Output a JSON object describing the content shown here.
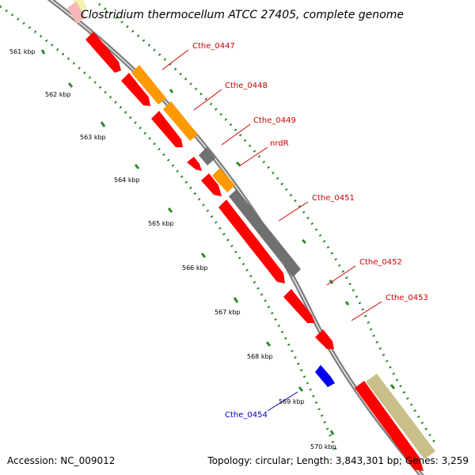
{
  "title": "Clostridium thermocellum ATCC 27405, complete genome",
  "footer": {
    "accession": "Accession: NC_009012",
    "summary": "Topology: circular; Length: 3,843,301 bp; Genes: 3,259"
  },
  "scale_labels": [
    "561 kbp",
    "562 kbp",
    "563 kbp",
    "564 kbp",
    "565 kbp",
    "566 kbp",
    "567 kbp",
    "568 kbp",
    "569 kbp",
    "570 kbp"
  ],
  "gene_labels": [
    {
      "name": "Cthe_0447",
      "color": "#cc0000"
    },
    {
      "name": "Cthe_0448",
      "color": "#cc0000"
    },
    {
      "name": "Cthe_0449",
      "color": "#cc0000"
    },
    {
      "name": "nrdR",
      "color": "#cc0000"
    },
    {
      "name": "Cthe_0451",
      "color": "#cc0000"
    },
    {
      "name": "Cthe_0452",
      "color": "#cc0000"
    },
    {
      "name": "Cthe_0453",
      "color": "#cc0000"
    },
    {
      "name": "Cthe_0454",
      "color": "#0000cc"
    }
  ],
  "colors": {
    "backbone": "#808080",
    "tick": "#2a8a2a",
    "forward_cds": "#ff0000",
    "rna": "#ff9900",
    "pseudo": "#707070",
    "reverse_cds": "#0000ee",
    "other": "#c8c088"
  }
}
